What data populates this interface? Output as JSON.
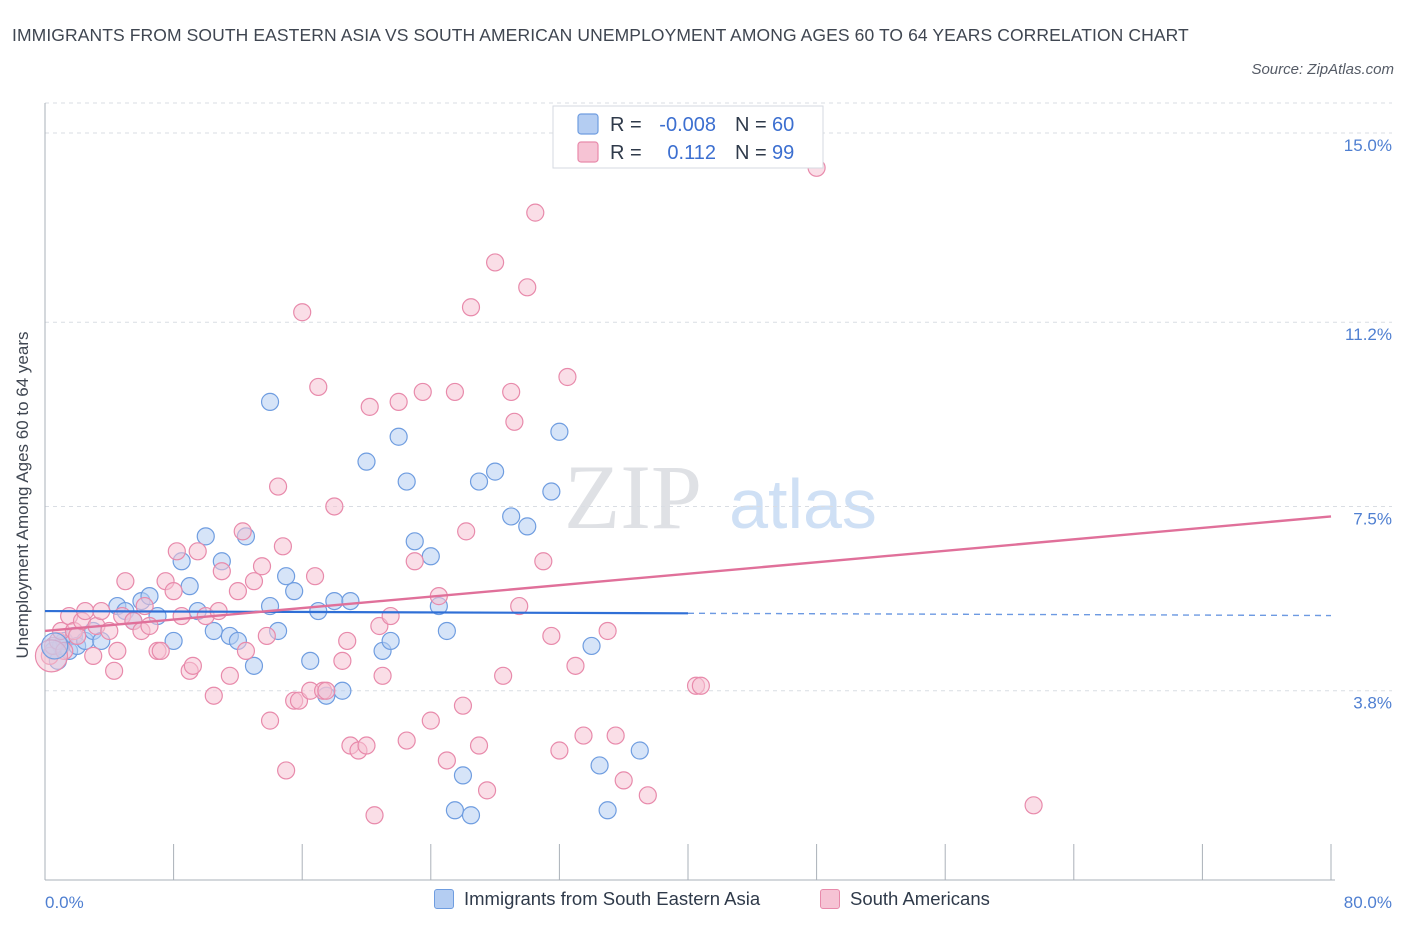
{
  "header": {
    "title": "IMMIGRANTS FROM SOUTH EASTERN ASIA VS SOUTH AMERICAN UNEMPLOYMENT AMONG AGES 60 TO 64 YEARS CORRELATION CHART",
    "source": "Source: ZipAtlas.com"
  },
  "watermark": {
    "zip": "ZIP",
    "atlas": "atlas"
  },
  "colors": {
    "blue_fill": "#b4cdf2",
    "blue_stroke": "#6f9de0",
    "blue_line": "#2f6fd6",
    "pink_fill": "#f6c3d4",
    "pink_stroke": "#e88aab",
    "pink_line": "#e0709a",
    "grid": "#d9dde3",
    "axis_text": "#4f7fd1"
  },
  "legend": {
    "rows": [
      {
        "r_label": "R =",
        "r_value": "-0.008",
        "n_label": "N =",
        "n_value": "60"
      },
      {
        "r_label": "R =",
        "r_value": "0.112",
        "n_label": "N =",
        "n_value": "99"
      }
    ]
  },
  "bottom_legend": {
    "series1": "Immigrants from South Eastern Asia",
    "series2": "South Americans"
  },
  "chart_data": {
    "type": "scatter",
    "title": "IMMIGRANTS FROM SOUTH EASTERN ASIA VS SOUTH AMERICAN UNEMPLOYMENT AMONG AGES 60 TO 64 YEARS CORRELATION CHART",
    "xlabel": "",
    "ylabel": "Unemployment Among Ages 60 to 64 years",
    "xlim": [
      0,
      80
    ],
    "ylim": [
      0,
      15.3
    ],
    "x_tick_labels": [
      "0.0%",
      "80.0%"
    ],
    "y_ticks": [
      3.8,
      7.5,
      11.2,
      15.0
    ],
    "y_tick_labels": [
      "3.8%",
      "7.5%",
      "11.2%",
      "15.0%"
    ],
    "grid": true,
    "series": [
      {
        "name": "Immigrants from South Eastern Asia",
        "R": -0.008,
        "N": 60,
        "trend": {
          "x0": 0,
          "y0": 5.4,
          "x1": 80,
          "y1": 5.31,
          "solid_until": 40
        },
        "points": [
          [
            0.5,
            4.6
          ],
          [
            0.8,
            4.4
          ],
          [
            1.0,
            4.7
          ],
          [
            1.2,
            4.8
          ],
          [
            1.5,
            4.6
          ],
          [
            1.8,
            4.9
          ],
          [
            2.0,
            4.7
          ],
          [
            2.5,
            4.8
          ],
          [
            3.0,
            5.0
          ],
          [
            3.5,
            4.8
          ],
          [
            4.5,
            5.5
          ],
          [
            5.0,
            5.4
          ],
          [
            5.5,
            5.2
          ],
          [
            6.0,
            5.6
          ],
          [
            6.5,
            5.7
          ],
          [
            7.0,
            5.3
          ],
          [
            8.0,
            4.8
          ],
          [
            8.5,
            6.4
          ],
          [
            9.0,
            5.9
          ],
          [
            9.5,
            5.4
          ],
          [
            10.0,
            6.9
          ],
          [
            10.5,
            5.0
          ],
          [
            11.0,
            6.4
          ],
          [
            11.5,
            4.9
          ],
          [
            12.0,
            4.8
          ],
          [
            12.5,
            6.9
          ],
          [
            13.0,
            4.3
          ],
          [
            14.0,
            5.5
          ],
          [
            14.5,
            5.0
          ],
          [
            15.0,
            6.1
          ],
          [
            15.5,
            5.8
          ],
          [
            16.5,
            4.4
          ],
          [
            17.0,
            5.4
          ],
          [
            17.5,
            3.7
          ],
          [
            18.0,
            5.6
          ],
          [
            18.5,
            3.8
          ],
          [
            19.0,
            5.6
          ],
          [
            20.0,
            8.4
          ],
          [
            21.0,
            4.6
          ],
          [
            21.5,
            4.8
          ],
          [
            22.0,
            8.9
          ],
          [
            22.5,
            8.0
          ],
          [
            23.0,
            6.8
          ],
          [
            24.0,
            6.5
          ],
          [
            24.5,
            5.5
          ],
          [
            25.0,
            5.0
          ],
          [
            25.5,
            1.4
          ],
          [
            26.0,
            2.1
          ],
          [
            26.5,
            1.3
          ],
          [
            27.0,
            8.0
          ],
          [
            28.0,
            8.2
          ],
          [
            29.0,
            7.3
          ],
          [
            30.0,
            7.1
          ],
          [
            31.5,
            7.8
          ],
          [
            32.0,
            9.0
          ],
          [
            34.0,
            4.7
          ],
          [
            34.5,
            2.3
          ],
          [
            35.0,
            1.4
          ],
          [
            37.0,
            2.6
          ],
          [
            14.0,
            9.6
          ]
        ]
      },
      {
        "name": "South Americans",
        "R": 0.112,
        "N": 99,
        "trend": {
          "x0": 0,
          "y0": 5.0,
          "x1": 80,
          "y1": 7.3
        },
        "points": [
          [
            0.3,
            4.5
          ],
          [
            0.5,
            4.7
          ],
          [
            0.8,
            4.8
          ],
          [
            1.0,
            5.0
          ],
          [
            1.2,
            4.6
          ],
          [
            1.5,
            5.3
          ],
          [
            1.8,
            5.0
          ],
          [
            2.0,
            4.9
          ],
          [
            2.3,
            5.2
          ],
          [
            2.5,
            5.4
          ],
          [
            3.0,
            4.5
          ],
          [
            3.2,
            5.1
          ],
          [
            3.5,
            5.4
          ],
          [
            4.0,
            5.0
          ],
          [
            4.5,
            4.6
          ],
          [
            4.8,
            5.3
          ],
          [
            5.0,
            6.0
          ],
          [
            5.5,
            5.2
          ],
          [
            6.0,
            5.0
          ],
          [
            6.2,
            5.5
          ],
          [
            6.5,
            5.1
          ],
          [
            7.0,
            4.6
          ],
          [
            7.2,
            4.6
          ],
          [
            7.5,
            6.0
          ],
          [
            8.0,
            5.8
          ],
          [
            8.2,
            6.6
          ],
          [
            8.5,
            5.3
          ],
          [
            9.0,
            4.2
          ],
          [
            9.2,
            4.3
          ],
          [
            9.5,
            6.6
          ],
          [
            10.0,
            5.3
          ],
          [
            10.5,
            3.7
          ],
          [
            10.8,
            5.4
          ],
          [
            11.0,
            6.2
          ],
          [
            11.5,
            4.1
          ],
          [
            12.0,
            5.8
          ],
          [
            12.3,
            7.0
          ],
          [
            12.5,
            4.6
          ],
          [
            13.0,
            6.0
          ],
          [
            13.5,
            6.3
          ],
          [
            13.8,
            4.9
          ],
          [
            14.0,
            3.2
          ],
          [
            14.5,
            7.9
          ],
          [
            14.8,
            6.7
          ],
          [
            15.0,
            2.2
          ],
          [
            15.5,
            3.6
          ],
          [
            15.8,
            3.6
          ],
          [
            16.0,
            11.4
          ],
          [
            16.5,
            3.8
          ],
          [
            16.8,
            6.1
          ],
          [
            17.0,
            9.9
          ],
          [
            17.3,
            3.8
          ],
          [
            17.5,
            3.8
          ],
          [
            18.0,
            7.5
          ],
          [
            18.5,
            4.4
          ],
          [
            18.8,
            4.8
          ],
          [
            19.0,
            2.7
          ],
          [
            19.5,
            2.6
          ],
          [
            20.0,
            2.7
          ],
          [
            20.2,
            9.5
          ],
          [
            20.5,
            1.3
          ],
          [
            20.8,
            5.1
          ],
          [
            21.0,
            4.1
          ],
          [
            21.5,
            5.3
          ],
          [
            22.0,
            9.6
          ],
          [
            22.5,
            2.8
          ],
          [
            23.0,
            6.4
          ],
          [
            23.5,
            9.8
          ],
          [
            24.0,
            3.2
          ],
          [
            24.5,
            5.7
          ],
          [
            25.0,
            2.4
          ],
          [
            25.5,
            9.8
          ],
          [
            26.0,
            3.5
          ],
          [
            26.2,
            7.0
          ],
          [
            26.5,
            11.5
          ],
          [
            27.0,
            2.7
          ],
          [
            27.5,
            1.8
          ],
          [
            28.0,
            12.4
          ],
          [
            28.5,
            4.1
          ],
          [
            29.0,
            9.8
          ],
          [
            29.2,
            9.2
          ],
          [
            29.5,
            5.5
          ],
          [
            30.0,
            11.9
          ],
          [
            30.5,
            13.4
          ],
          [
            31.0,
            6.4
          ],
          [
            31.5,
            4.9
          ],
          [
            32.0,
            2.6
          ],
          [
            32.5,
            10.1
          ],
          [
            33.0,
            4.3
          ],
          [
            33.5,
            2.9
          ],
          [
            35.0,
            5.0
          ],
          [
            35.5,
            2.9
          ],
          [
            36.0,
            2.0
          ],
          [
            40.5,
            3.9
          ],
          [
            40.8,
            3.9
          ],
          [
            48.0,
            14.3
          ],
          [
            61.5,
            1.5
          ],
          [
            4.3,
            4.2
          ],
          [
            37.5,
            1.7
          ]
        ]
      }
    ]
  }
}
